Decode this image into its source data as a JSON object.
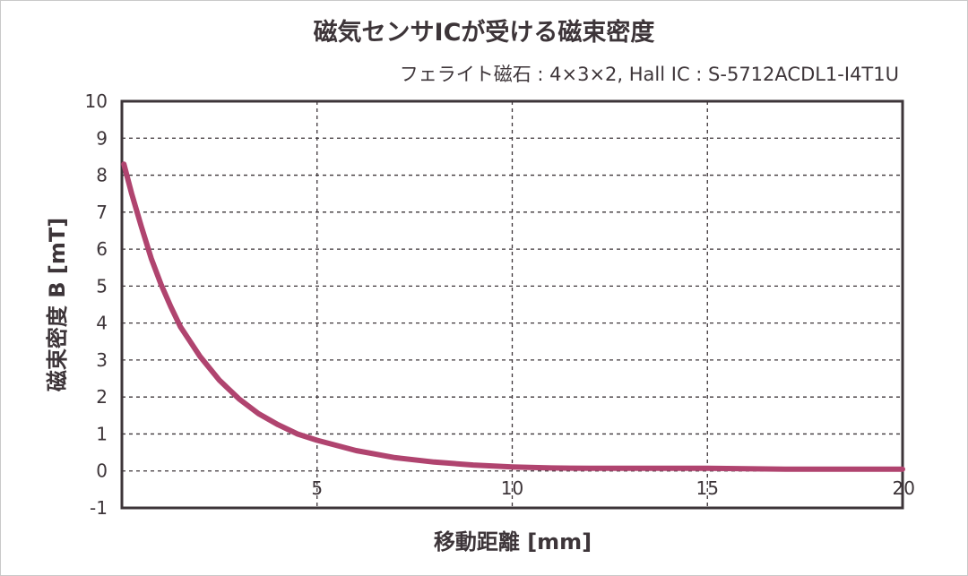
{
  "chart_data": {
    "type": "line",
    "title": "磁気センサICが受ける磁束密度",
    "subtitle": "フェライト磁石 : 4×3×2, Hall IC : S-5712ACDL1-I4T1U",
    "xlabel": "移動距離 [mm]",
    "ylabel": "磁束密度 B [mT]",
    "xlim": [
      0,
      20
    ],
    "ylim": [
      -1,
      10
    ],
    "x_ticks": [
      5,
      10,
      15,
      20
    ],
    "y_ticks": [
      10,
      9,
      8,
      7,
      6,
      5,
      4,
      3,
      2,
      1,
      0,
      -1
    ],
    "grid": true,
    "line_color": "#b0446f",
    "series": [
      {
        "x": [
          0.05,
          0.25,
          0.5,
          0.75,
          1.0,
          1.25,
          1.5,
          2.0,
          2.5,
          3.0,
          3.5,
          4.0,
          4.5,
          5.0,
          6.0,
          7.0,
          8.0,
          9.0,
          10.0,
          11.0,
          12.0,
          13.0,
          14.0,
          15.0,
          16.0,
          17.0,
          18.0,
          19.0,
          20.0
        ],
        "y": [
          8.3,
          7.5,
          6.6,
          5.75,
          5.05,
          4.45,
          3.9,
          3.1,
          2.45,
          1.95,
          1.55,
          1.25,
          1.0,
          0.83,
          0.55,
          0.36,
          0.24,
          0.16,
          0.11,
          0.08,
          0.07,
          0.07,
          0.07,
          0.07,
          0.06,
          0.05,
          0.05,
          0.05,
          0.05
        ]
      }
    ]
  }
}
